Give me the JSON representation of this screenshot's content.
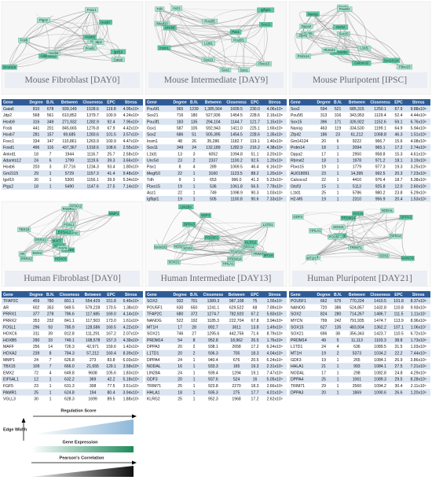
{
  "panels": [
    {
      "title": "Mouse Fibroblast [DAY0]",
      "network": {
        "nodes": [
          "Gm2115",
          "Ptgs2",
          "Ankrd1",
          "Adamts12",
          "Jdp2",
          "Foxd1",
          "Hoxb7",
          "Hoxb6",
          "Foxc1",
          "Hoxb9",
          "Gata6",
          "Fosb",
          "Igsf10"
        ]
      },
      "table": {
        "header": [
          "Gene",
          "Degree",
          "B.N.",
          "Between",
          "Closeness",
          "EPC",
          "Stress"
        ],
        "rows": [
          [
            "Gata6",
            "810",
            "678",
            "939,149",
            "1528.6",
            "119.8",
            "4.95x10⁶"
          ],
          [
            "Jdp2",
            "568",
            "561",
            "610,852",
            "1379.7",
            "100.9",
            "4.24x10⁶"
          ],
          [
            "Hoxb9",
            "316",
            "349",
            "271,932",
            "1282.9",
            "92.4",
            "7.95x10⁶"
          ],
          [
            "Fosb",
            "441",
            "201",
            "845,665",
            "1276.8",
            "67.9",
            "4.42x10⁶"
          ],
          [
            "Hoxb7",
            "281",
            "157",
            "69,685",
            "1283.6",
            "101.5",
            "3.57x10⁶"
          ],
          [
            "Foxc1",
            "334",
            "147",
            "110,861",
            "1263.9",
            "100.9",
            "4.47x10⁶"
          ],
          [
            "Foxd1",
            "496",
            "116",
            "437,367",
            "1318.6",
            "108.6",
            "2.55x10⁶"
          ],
          [
            "Ankrd1",
            "18",
            "7",
            "1944",
            "1116.7",
            "25.7",
            "2.58x10⁵"
          ],
          [
            "Adamts12",
            "24",
            "6",
            "1799",
            "1119.6",
            "39.3",
            "3.66x10⁵"
          ],
          [
            "Hoxb6",
            "203",
            "3",
            "37,716",
            "1234.3",
            "93.4",
            "1.80x10⁶"
          ],
          [
            "Gm2115",
            "29",
            "1",
            "5729",
            "1157.3",
            "41.4",
            "9.48x10⁵"
          ],
          [
            "Igsf10",
            "30",
            "1",
            "5300",
            "1156.1",
            "39.9",
            "5.34x10⁵"
          ],
          [
            "Ptgs2",
            "18",
            "1",
            "5490",
            "1147.6",
            "27.5",
            "7.14x10⁵"
          ]
        ]
      }
    },
    {
      "title": "Mouse Intermediate [DAY9]",
      "network": {
        "nodes": [
          "Igfbpl1",
          "Megf10",
          "Fbxo15",
          "Sox11",
          "Asz1",
          "L1td1",
          "Unc5d",
          "Pou3f1",
          "Tdh",
          "Insm1",
          "Sox21",
          "Pou5f1",
          "Pax1",
          "Sox2",
          "Gsx1"
        ]
      },
      "table": {
        "header": [
          "Gene",
          "Degree",
          "B.N.",
          "Between",
          "Closeness",
          "EPC",
          "Stress"
        ],
        "rows": [
          [
            "Pou5f1",
            "965",
            "1239",
            "1,385,564",
            "1609.5",
            "230.0",
            "4.06x10⁶"
          ],
          [
            "Sox21",
            "716",
            "180",
            "527,936",
            "1454.5",
            "228.6",
            "2.16x10⁶"
          ],
          [
            "Pou3f1",
            "183",
            "135",
            "294,104",
            "1144.7",
            "121.7",
            "1.15x10⁶"
          ],
          [
            "Gsx1",
            "587",
            "105",
            "592,943",
            "1411.0",
            "225.1",
            "1.65x10⁶"
          ],
          [
            "Sox2",
            "686",
            "51",
            "505,395",
            "1454.5",
            "228.6",
            "1.35x10⁶"
          ],
          [
            "Insm1",
            "48",
            "26",
            "35,286",
            "1182.7",
            "119.1",
            "1.40x10⁶"
          ],
          [
            "Sox11",
            "349",
            "24",
            "132,189",
            "1282.9",
            "216.2",
            "4.38x10⁶"
          ],
          [
            "L1td1",
            "13",
            "3",
            "6052",
            "1094.8",
            "51.1",
            "3.20x10⁵"
          ],
          [
            "Unc5d",
            "23",
            "2",
            "2337",
            "1100.2",
            "92.5",
            "1.20x10⁶"
          ],
          [
            "Pax1",
            "8",
            "4",
            "289",
            "1069.5",
            "46.4",
            "6.16x10⁴"
          ],
          [
            "Megf10",
            "22",
            "1",
            "3160",
            "1123.5",
            "88.2",
            "1.20x10⁶"
          ],
          [
            "Tdh",
            "9",
            "1",
            "653",
            "996.0",
            "41.3",
            "5.23x10⁴"
          ],
          [
            "Fbxo15",
            "19",
            "1",
            "536",
            "1061.8",
            "56.5",
            "7.78x10⁴"
          ],
          [
            "Asz1",
            "22",
            "1",
            "749",
            "1098.9",
            "90.3",
            "1.03x10⁵"
          ],
          [
            "Igfbpl1",
            "19",
            "1",
            "505",
            "1100.8",
            "90.6",
            "7.33x10⁴"
          ]
        ]
      }
    },
    {
      "title": "Mouse Pluripotent [IPSC]",
      "network": {
        "nodes": [
          "Calcoco2",
          "Fbxo15",
          "Prdm14",
          "AU018091",
          "H2-M5",
          "Dppa2",
          "Gtsf1l",
          "Sox2",
          "Sox15",
          "Gm14124",
          "Zfp42",
          "L1td1",
          "Nanog",
          "Pou5f1",
          "Rbmxl2"
        ]
      },
      "table": {
        "header": [
          "Gene",
          "Degree",
          "B.N.",
          "Between",
          "Closeness",
          "EPC",
          "Stress"
        ],
        "rows": [
          [
            "Sox2",
            "594",
            "521",
            "685,315",
            "1250.1",
            "67.9",
            "9.88x10⁶"
          ],
          [
            "Pou5f1",
            "313",
            "316",
            "343,953",
            "1129.4",
            "52.4",
            "4.44x10⁶"
          ],
          [
            "Sox15",
            "396",
            "171",
            "326,922",
            "1152.6",
            "59.1",
            "6.76x10⁶"
          ],
          [
            "Nanog",
            "463",
            "119",
            "334,530",
            "1199.1",
            "64.9",
            "5.94x10⁶"
          ],
          [
            "Zfp42",
            "186",
            "23",
            "61,212",
            "1068.8",
            "46.3",
            "1.51x10⁶"
          ],
          [
            "Gm14124",
            "20",
            "6",
            "9222",
            "966.7",
            "15.6",
            "4.08x10⁵"
          ],
          [
            "Prdm14",
            "18",
            "1",
            "2094",
            "965.1",
            "17.2",
            "2.74x10⁵"
          ],
          [
            "Dppa2",
            "17",
            "1",
            "2950",
            "958.8",
            "15.3",
            "4.61x10⁵"
          ],
          [
            "Rbmxl2",
            "18",
            "1",
            "1978",
            "971.2",
            "18.1",
            "3.19x10⁵"
          ],
          [
            "Fbxo15",
            "19",
            "1",
            "1779",
            "977.3",
            "19.3",
            "3.25x10⁵"
          ],
          [
            "AU018091",
            "23",
            "1",
            "14,395",
            "992.5",
            "20.3",
            "7.23x10⁵"
          ],
          [
            "Calcoco2",
            "22",
            "1",
            "4410",
            "976.4",
            "18.7",
            "5.38x10⁵"
          ],
          [
            "Gtsf1l",
            "15",
            "1",
            "5113",
            "925.8",
            "12.0",
            "2.60x10⁵"
          ],
          [
            "L1td1",
            "25",
            "1",
            "5786",
            "980.2",
            "23.8",
            "5.29x10⁵"
          ],
          [
            "H2-M5",
            "19",
            "1",
            "2310",
            "956.9",
            "20.4",
            "1.53x10⁵"
          ]
        ]
      }
    },
    {
      "title": "Human Fibroblast [DAY0]",
      "network": {
        "nodes": [
          "MMP1",
          "EMX2",
          "PRRX1",
          "VGLL3",
          "FOSL1",
          "TBX15",
          "HOXB5",
          "AR",
          "PRRX2",
          "MAFF",
          "TFAP2C",
          "HOXA2",
          "HOXC6",
          "FGF5",
          "PAMR1",
          "EIF5AL1"
        ]
      },
      "table": {
        "header": [
          "Gene",
          "Degree",
          "B.N.",
          "Closeness",
          "Between",
          "EPC",
          "Stress"
        ],
        "rows": [
          [
            "TFAP2C",
            "459",
            "780",
            "891.1",
            "554,429",
            "151.8",
            "6.49x10⁶"
          ],
          [
            "AR",
            "602",
            "353",
            "949.5",
            "579,228",
            "170.5",
            "1.38x10⁷"
          ],
          [
            "PRRX1",
            "377",
            "278",
            "786.6",
            "117,685",
            "169.0",
            "4.14x10⁶"
          ],
          [
            "PRRX2",
            "353",
            "232",
            "841.1",
            "117,503",
            "173.0",
            "1.61x10⁶"
          ],
          [
            "FOSL1",
            "296",
            "93",
            "785.9",
            "128,586",
            "160.5",
            "4.22x10⁶"
          ],
          [
            "HOXC6",
            "311",
            "39",
            "812.8",
            "111,291",
            "167.2",
            "2.07x10⁶"
          ],
          [
            "HOXB5",
            "290",
            "33",
            "749.1",
            "108,578",
            "157.3",
            "4.39x10⁶"
          ],
          [
            "MAFF",
            "256",
            "14",
            "726.3",
            "42,971",
            "159.6",
            "1.42x10⁶"
          ],
          [
            "HOXA2",
            "239",
            "8",
            "784.3",
            "57,212",
            "160.4",
            "8.39x10⁵"
          ],
          [
            "MMP1",
            "24",
            "7",
            "626.8",
            "273",
            "83.8",
            "6.03x10⁴"
          ],
          [
            "TBX15",
            "109",
            "7",
            "666.0",
            "21,655",
            "129.1",
            "3.58x10⁵"
          ],
          [
            "EMX2",
            "72",
            "4",
            "649.8",
            "9608",
            "105.6",
            "1.83x10⁵"
          ],
          [
            "EIF5AL1",
            "12",
            "1",
            "632.2",
            "369",
            "42.2",
            "5.18x10⁴"
          ],
          [
            "FGF5",
            "23",
            "1",
            "631.3",
            "308",
            "77.5",
            "3.51x10⁴"
          ],
          [
            "PAMR1",
            "25",
            "1",
            "624.8",
            "194",
            "80.4",
            "3.94x10⁴"
          ],
          [
            "VGLL3",
            "30",
            "1",
            "628.3",
            "1699",
            "89.5",
            "1.88x10⁵"
          ]
        ]
      }
    },
    {
      "title": "Human Intermediate [DAY13]",
      "network": {
        "nodes": [
          "LIN28A",
          "DPPA4",
          "NODAL",
          "GDF3",
          "TRIM71",
          "SOX2",
          "POU5F1",
          "TFAP2C",
          "NANOG",
          "MT1H",
          "SOX21",
          "PRDM14",
          "DPPA3",
          "L1TD1",
          "HHLA1",
          "KLRG2"
        ]
      },
      "table": {
        "header": [
          "Gene",
          "Degree",
          "B.N.",
          "Closeness",
          "Between",
          "EPC",
          "Stress"
        ],
        "rows": [
          [
            "SOX2",
            "932",
            "701",
            "1389.3",
            "987,108",
            "75",
            "1.55x10⁷"
          ],
          [
            "POU5F1",
            "630",
            "650",
            "1241.1",
            "629,522",
            "68",
            "7.89x10⁶"
          ],
          [
            "TFAP2C",
            "680",
            "372",
            "1274.7",
            "782,920",
            "67.2",
            "5.83x10⁶"
          ],
          [
            "NANOG",
            "522",
            "192",
            "1185.3",
            "222,704",
            "67.8",
            "3.94x10⁶"
          ],
          [
            "MT1H",
            "17",
            "28",
            "892.7",
            "3611",
            "13.8",
            "1.49x10⁵"
          ],
          [
            "SOX21",
            "746",
            "27",
            "1295.6",
            "442,756",
            "71.6",
            "8.79x10⁶"
          ],
          [
            "PRDM14",
            "54",
            "8",
            "952.8",
            "18,962",
            "26.5",
            "1.76x10⁶"
          ],
          [
            "DPPA3",
            "20",
            "2",
            "938.1",
            "2658",
            "17.2",
            "6.24x10⁴"
          ],
          [
            "L1TD1",
            "20",
            "2",
            "936.3",
            "705",
            "18.3",
            "4.04x10⁴"
          ],
          [
            "DPPA4",
            "24",
            "1",
            "940.4",
            "676",
            "20.5",
            "6.24x10⁴"
          ],
          [
            "NODAL",
            "16",
            "1",
            "933.3",
            "165",
            "19.3",
            "2.31x10⁴"
          ],
          [
            "LIN28A",
            "24",
            "1",
            "939.4",
            "1294",
            "19.1",
            "7.47x10⁴"
          ],
          [
            "GDF3",
            "20",
            "1",
            "937.6",
            "524",
            "16",
            "5.05x10⁴"
          ],
          [
            "TRIM71",
            "25",
            "1",
            "923.8",
            "2270",
            "18.3",
            "2.66x10⁵"
          ],
          [
            "HHLA1",
            "18",
            "1",
            "935.3",
            "275",
            "17.7",
            "4.01x10⁴"
          ],
          [
            "KLRG2",
            "25",
            "1",
            "952.3",
            "1968",
            "17.2",
            "2.62x10⁵"
          ]
        ]
      }
    },
    {
      "title": "Human Pluripotent [DAY21]",
      "network": {
        "nodes": [
          "DPPA3",
          "DPPA4",
          "HHLA1",
          "MYCN",
          "TRIM71",
          "GDF3",
          "SOX15",
          "L1TD1",
          "POU5F1",
          "NANOG",
          "SOX2",
          "SOX21",
          "PRDM14",
          "NODAL",
          "MT1H"
        ]
      },
      "table": {
        "header": [
          "Gene",
          "Degree",
          "B.N.",
          "Between",
          "Closeness",
          "EPC",
          "Stress"
        ],
        "rows": [
          [
            "POU5F1",
            "662",
            "675",
            "770,224",
            "1410.5",
            "101.8",
            "8.37x10⁶"
          ],
          [
            "NANOG",
            "720",
            "386",
            "524,857",
            "1432.8",
            "110.8",
            "9.93x10⁶"
          ],
          [
            "SOX2",
            "824",
            "280",
            "714,267",
            "1486.7",
            "111.5",
            "1.11x10⁷"
          ],
          [
            "MYCN",
            "799",
            "242",
            "791,935",
            "1474.7",
            "113.9",
            "8.96x10⁶"
          ],
          [
            "SOX15",
            "627",
            "135",
            "483,934",
            "1362.2",
            "107.1",
            "1.06x10⁷"
          ],
          [
            "SOX21",
            "696",
            "38",
            "356,343",
            "1423.7",
            "110.5",
            "6.72x10⁶"
          ],
          [
            "PRDM14",
            "49",
            "5",
            "11,113",
            "1103.3",
            "38.8",
            "1.73x10⁵"
          ],
          [
            "L1TD1",
            "24",
            "4",
            "636",
            "1089.5",
            "31.5",
            "1.03x10⁵"
          ],
          [
            "MT1H",
            "19",
            "2",
            "5373",
            "1034.2",
            "22.2",
            "7.44x10⁴"
          ],
          [
            "GDF3",
            "19",
            "1",
            "265",
            "1084.1",
            "26.9",
            "3.86x10⁴"
          ],
          [
            "HHLA1",
            "21",
            "1",
            "993",
            "1084.1",
            "27.5",
            "7.21x10⁴"
          ],
          [
            "NODAL",
            "17",
            "1",
            "298",
            "1082.8",
            "24.8",
            "4.29x10⁴"
          ],
          [
            "DPPA4",
            "25",
            "1",
            "1061",
            "1089.3",
            "29.5",
            "8.28x10⁴"
          ],
          [
            "TRIM71",
            "29",
            "1",
            "2560",
            "1094.2",
            "30.4",
            "2.11x10⁵"
          ],
          [
            "DPPA3",
            "20",
            "1",
            "1869",
            "1090.6",
            "26.6",
            "1.20x10⁵"
          ]
        ]
      }
    }
  ],
  "legend": {
    "regulation_score": "Regulation Score",
    "edge_width": "Edge Width",
    "gene_expression": "Gene Expression",
    "pearsons_correlation": "Pearson's Correlation"
  }
}
